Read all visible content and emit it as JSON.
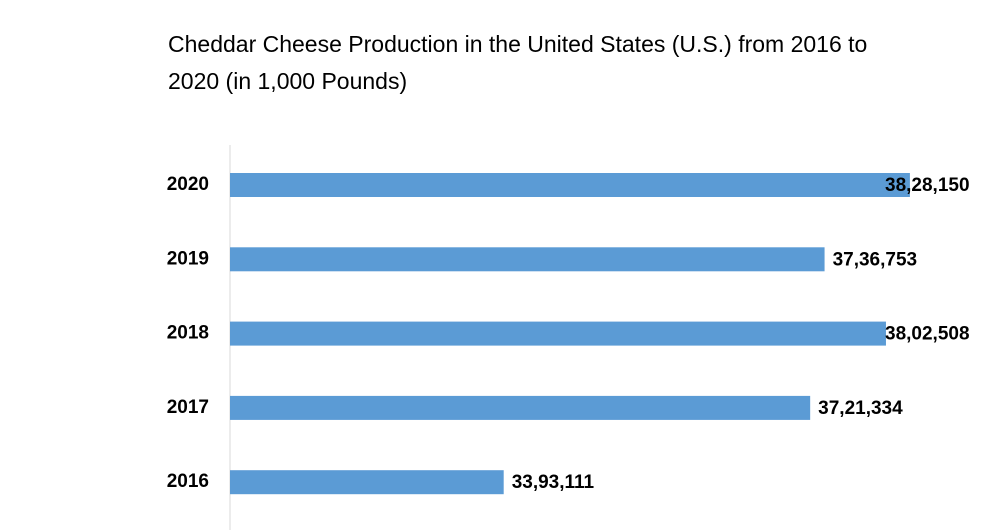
{
  "chart_data": {
    "type": "hbar",
    "title": "Cheddar Cheese Production in the United States (U.S.) from 2016 to 2020 (in 1,000 Pounds)",
    "categories": [
      "2020",
      "2019",
      "2018",
      "2017",
      "2016"
    ],
    "values": [
      3828150,
      3736753,
      3802508,
      3721334,
      3393111
    ],
    "value_labels": [
      "38,28,150",
      "37,36,753",
      "38,02,508",
      "37,21,334",
      "33,93,111"
    ],
    "color": "#5b9bd5",
    "xlim": [
      3100000,
      3900000
    ]
  }
}
